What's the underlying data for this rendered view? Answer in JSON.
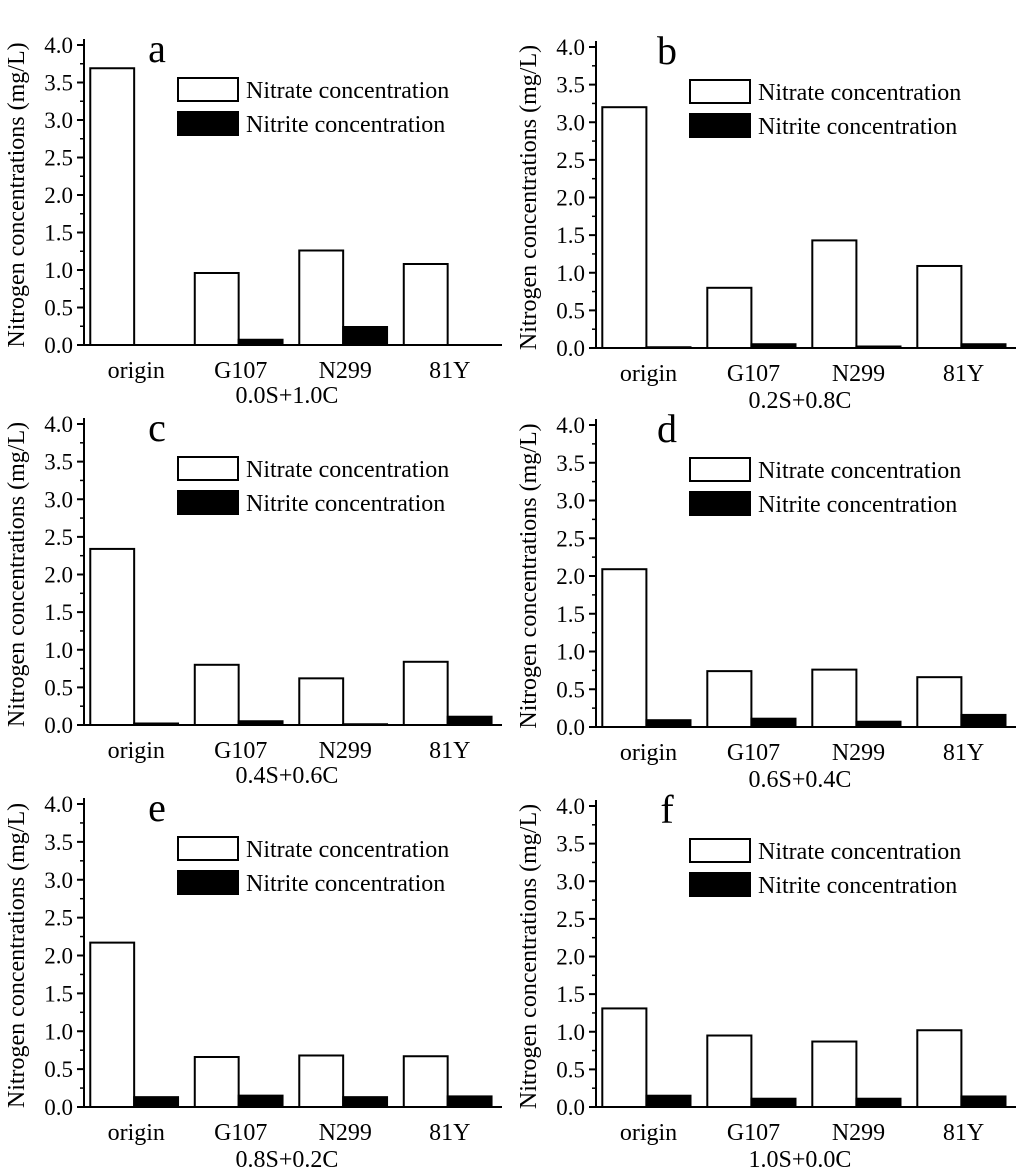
{
  "shared": {
    "ylabel": "Nitrogen concentrations (mg/L)",
    "ylim": [
      0,
      4.0
    ],
    "yticks": [
      "0.0",
      "0.5",
      "1.0",
      "1.5",
      "2.0",
      "2.5",
      "3.0",
      "3.5",
      "4.0"
    ],
    "categories": [
      "origin",
      "G107",
      "N299",
      "81Y"
    ],
    "legend": [
      "Nitrate concentration",
      "Nitrite concentration"
    ],
    "colors": {
      "nitrate": "#ffffff",
      "nitrite": "#000000",
      "stroke": "#000000"
    }
  },
  "chart_data": [
    {
      "type": "bar",
      "panel": "a",
      "title": "a",
      "xlabel": "0.0S+1.0C",
      "ylabel": "Nitrogen concentrations (mg/L)",
      "ylim": [
        0,
        4.0
      ],
      "categories": [
        "origin",
        "G107",
        "N299",
        "81Y"
      ],
      "series": [
        {
          "name": "Nitrate concentration",
          "values": [
            3.69,
            0.96,
            1.26,
            1.08
          ]
        },
        {
          "name": "Nitrite concentration",
          "values": [
            0.0,
            0.07,
            0.24,
            0.0
          ]
        }
      ]
    },
    {
      "type": "bar",
      "panel": "b",
      "title": "b",
      "xlabel": "0.2S+0.8C",
      "ylabel": "Nitrogen concentrations (mg/L)",
      "ylim": [
        0,
        4.0
      ],
      "categories": [
        "origin",
        "G107",
        "N299",
        "81Y"
      ],
      "series": [
        {
          "name": "Nitrate concentration",
          "values": [
            3.2,
            0.8,
            1.43,
            1.09
          ]
        },
        {
          "name": "Nitrite concentration",
          "values": [
            0.01,
            0.05,
            0.02,
            0.05
          ]
        }
      ]
    },
    {
      "type": "bar",
      "panel": "c",
      "title": "c",
      "xlabel": "0.4S+0.6C",
      "ylabel": "Nitrogen concentrations (mg/L)",
      "ylim": [
        0,
        4.0
      ],
      "categories": [
        "origin",
        "G107",
        "N299",
        "81Y"
      ],
      "series": [
        {
          "name": "Nitrate concentration",
          "values": [
            2.34,
            0.8,
            0.62,
            0.84
          ]
        },
        {
          "name": "Nitrite concentration",
          "values": [
            0.02,
            0.05,
            0.01,
            0.11
          ]
        }
      ]
    },
    {
      "type": "bar",
      "panel": "d",
      "title": "d",
      "xlabel": "0.6S+0.4C",
      "ylabel": "Nitrogen concentrations (mg/L)",
      "ylim": [
        0,
        4.0
      ],
      "categories": [
        "origin",
        "G107",
        "N299",
        "81Y"
      ],
      "series": [
        {
          "name": "Nitrate concentration",
          "values": [
            2.09,
            0.74,
            0.76,
            0.66
          ]
        },
        {
          "name": "Nitrite concentration",
          "values": [
            0.09,
            0.11,
            0.07,
            0.16
          ]
        }
      ]
    },
    {
      "type": "bar",
      "panel": "e",
      "title": "e",
      "xlabel": "0.8S+0.2C",
      "ylabel": "Nitrogen concentrations (mg/L)",
      "ylim": [
        0,
        4.0
      ],
      "categories": [
        "origin",
        "G107",
        "N299",
        "81Y"
      ],
      "series": [
        {
          "name": "Nitrate concentration",
          "values": [
            2.17,
            0.66,
            0.68,
            0.67
          ]
        },
        {
          "name": "Nitrite concentration",
          "values": [
            0.13,
            0.15,
            0.13,
            0.14
          ]
        }
      ]
    },
    {
      "type": "bar",
      "panel": "f",
      "title": "f",
      "xlabel": "1.0S+0.0C",
      "ylabel": "Nitrogen concentrations (mg/L)",
      "ylim": [
        0,
        4.0
      ],
      "categories": [
        "origin",
        "G107",
        "N299",
        "81Y"
      ],
      "series": [
        {
          "name": "Nitrate concentration",
          "values": [
            1.31,
            0.95,
            0.87,
            1.02
          ]
        },
        {
          "name": "Nitrite concentration",
          "values": [
            0.15,
            0.11,
            0.11,
            0.14
          ]
        }
      ]
    }
  ]
}
